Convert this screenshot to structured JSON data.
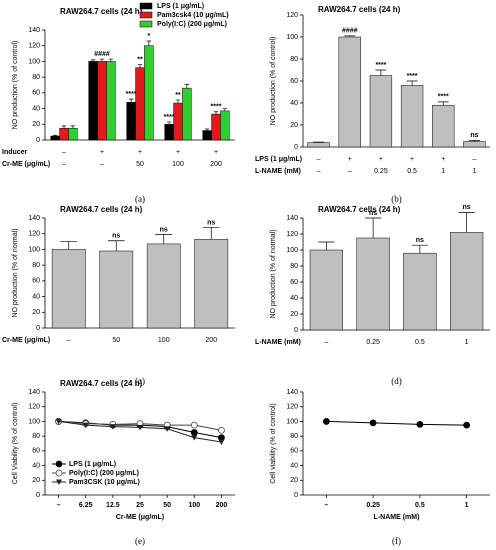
{
  "chart_data": [
    {
      "type": "bar",
      "panel_label": "(a)",
      "title": "RAW264.7 cells (24 h)",
      "ylabel": "NO production (% of control)",
      "ylim": [
        0,
        140
      ],
      "yticks": [
        0,
        20,
        40,
        60,
        80,
        100,
        120,
        140
      ],
      "rows": [
        {
          "label": "Inducer",
          "values": [
            "–",
            "+",
            "+",
            "+",
            "+"
          ]
        },
        {
          "label": "Cr-ME (μg/mL)",
          "values": [
            "–",
            "–",
            "50",
            "100",
            "200"
          ]
        }
      ],
      "sig_color": "#e31a1c",
      "series": [
        {
          "name": "LPS (1 μg/mL)",
          "color": "#000000",
          "values": [
            5,
            100,
            48,
            20,
            12
          ],
          "errors": [
            1,
            2,
            4,
            3,
            2
          ],
          "sig": [
            null,
            null,
            "****",
            "****",
            null
          ]
        },
        {
          "name": "Pam3csk4 (10 μg/mL)",
          "color": "#e31a1c",
          "values": [
            15,
            100,
            92,
            47,
            33
          ],
          "errors": [
            3,
            3,
            4,
            4,
            3
          ],
          "sig": [
            null,
            "####",
            "**",
            "**",
            "****"
          ]
        },
        {
          "name": "Poly(I:C) (200 μg/mL)",
          "color": "#33cc33",
          "values": [
            15,
            100,
            120,
            66,
            37
          ],
          "errors": [
            3,
            3,
            6,
            5,
            3
          ],
          "sig": [
            null,
            null,
            "*",
            null,
            null
          ]
        }
      ]
    },
    {
      "type": "bar",
      "panel_label": "(b)",
      "title": "RAW264.7 cells (24 h)",
      "ylabel": "NO production (% of control)",
      "ylim": [
        0,
        120
      ],
      "yticks": [
        0,
        20,
        40,
        60,
        80,
        100,
        120
      ],
      "sig_color": "#e31a1c",
      "rows": [
        {
          "label": "LPS (1 μg/mL)",
          "values": [
            "–",
            "+",
            "+",
            "+",
            "+",
            "–"
          ]
        },
        {
          "label": "L-NAME (mM)",
          "values": [
            "–",
            "–",
            "0.25",
            "0.5",
            "1",
            "1"
          ]
        }
      ],
      "color": "#bfbfbf",
      "values": [
        4,
        100,
        65,
        56,
        38,
        5
      ],
      "errors": [
        0.5,
        1,
        5,
        4,
        3,
        1
      ],
      "sig": [
        null,
        "####",
        "****",
        "****",
        "****",
        "ns"
      ]
    },
    {
      "type": "bar",
      "panel_label": "(c)",
      "title": "RAW264.7 cells (24 h)",
      "ylabel": "NO production (% of normal)",
      "ylim": [
        0,
        140
      ],
      "yticks": [
        0,
        20,
        40,
        60,
        80,
        100,
        120,
        140
      ],
      "sig_color": "#000000",
      "rows": [
        {
          "label": "Cr-ME (μg/mL)",
          "values": [
            "–",
            "50",
            "100",
            "200"
          ]
        }
      ],
      "color": "#bfbfbf",
      "values": [
        100,
        98,
        107,
        113
      ],
      "errors": [
        10,
        13,
        12,
        15
      ],
      "sig": [
        null,
        "ns",
        "ns",
        "ns"
      ]
    },
    {
      "type": "bar",
      "panel_label": "(d)",
      "title": "RAW264.7 cells (24 h)",
      "ylabel": "NO production (% of normal)",
      "ylim": [
        0,
        140
      ],
      "yticks": [
        0,
        20,
        40,
        60,
        80,
        100,
        120,
        140
      ],
      "sig_color": "#000000",
      "rows": [
        {
          "label": "L-NAME (mM)",
          "values": [
            "–",
            "0.25",
            "0.5",
            "1"
          ]
        }
      ],
      "color": "#bfbfbf",
      "values": [
        100,
        115,
        96,
        122
      ],
      "errors": [
        10,
        25,
        10,
        25
      ],
      "sig": [
        null,
        "ns",
        "ns",
        "ns"
      ]
    },
    {
      "type": "line",
      "panel_label": "(e)",
      "title": "RAW264.7 cells (24 h)",
      "ylabel": "Cell Viability (% of control)",
      "xlabel": "Cr-ME (μg/mL)",
      "ylim": [
        0,
        140
      ],
      "yticks": [
        0,
        20,
        40,
        60,
        80,
        100,
        120,
        140
      ],
      "categories": [
        "–",
        "6.25",
        "12.5",
        "25",
        "50",
        "100",
        "200"
      ],
      "series": [
        {
          "name": "LPS (1 μg/mL)",
          "color": "#000000",
          "marker": "circle-filled",
          "values": [
            100,
            98,
            95,
            95,
            93,
            85,
            78
          ]
        },
        {
          "name": "Poly(I:C) (200 μg/mL)",
          "color": "#444444",
          "marker": "circle-open",
          "values": [
            100,
            97,
            96,
            97,
            95,
            95,
            88
          ]
        },
        {
          "name": "Pam3CSK (10 μg/mL)",
          "color": "#222222",
          "marker": "triangle",
          "values": [
            100,
            95,
            93,
            92,
            90,
            78,
            72
          ]
        }
      ]
    },
    {
      "type": "line",
      "panel_label": "(f)",
      "ylabel": "Cell viability (% of control)",
      "xlabel": "L-NAME (mM)",
      "ylim": [
        0,
        140
      ],
      "yticks": [
        0,
        20,
        40,
        60,
        80,
        100,
        120,
        140
      ],
      "categories": [
        "–",
        "0.25",
        "0.5",
        "1"
      ],
      "series": [
        {
          "color": "#000000",
          "marker": "circle-filled",
          "values": [
            100,
            98,
            96,
            95
          ]
        }
      ]
    }
  ]
}
